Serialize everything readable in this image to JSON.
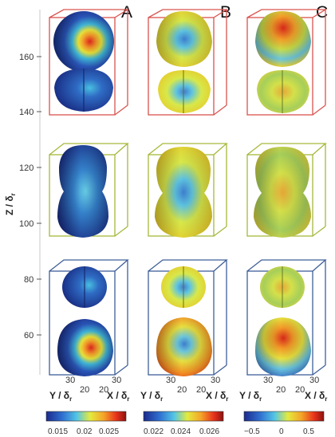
{
  "panels": [
    {
      "letter": "A"
    },
    {
      "letter": "B"
    },
    {
      "letter": "C"
    }
  ],
  "z_axis": {
    "label": "Z / δ",
    "label_sub": "r",
    "ticks": [
      "160",
      "140",
      "120",
      "100",
      "80",
      "60"
    ]
  },
  "xy_axes": {
    "y_label": "Y / δ",
    "y_sub": "r",
    "x_label": "X / δ",
    "x_sub": "r",
    "y_ticks": [
      "30",
      "20"
    ],
    "x_ticks": [
      "20",
      "30"
    ]
  },
  "colorbars": [
    {
      "ticks": [
        "0.015",
        "0.02",
        "0.025"
      ]
    },
    {
      "ticks": [
        "0.022",
        "0.024",
        "0.026"
      ]
    },
    {
      "ticks": [
        "−0.5",
        "0",
        "0.5"
      ]
    }
  ],
  "box_colors": {
    "top": "#d9534f",
    "middle": "#a6b83a",
    "bottom": "#3f5f99"
  }
}
